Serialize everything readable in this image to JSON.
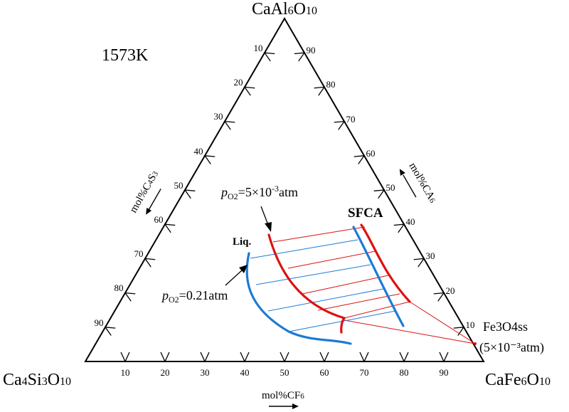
{
  "diagram": {
    "temperature": "1573K",
    "vertices": {
      "top": {
        "main": "CaAl",
        "sub1": "6",
        "mid": "O",
        "sub2": "10"
      },
      "left": {
        "main": "Ca",
        "sub1": "4",
        "mid": "Si",
        "sub2": "3",
        "tail": "O",
        "sub3": "10"
      },
      "right": {
        "main": "CaFe",
        "sub1": "6",
        "mid": "O",
        "sub2": "10"
      }
    },
    "axes": {
      "bottom": {
        "label_main": "mol%CF",
        "label_sub": "6",
        "ticks": [
          "10",
          "20",
          "30",
          "40",
          "50",
          "60",
          "70",
          "80",
          "90"
        ]
      },
      "left": {
        "label_main": "mol%C",
        "label_sub1": "4",
        "label_mid": "S",
        "label_sub2": "3",
        "ticks": [
          "10",
          "20",
          "30",
          "40",
          "50",
          "60",
          "70",
          "80",
          "90"
        ]
      },
      "right": {
        "label_main": "mol%CA",
        "label_sub": "6",
        "ticks": [
          "10",
          "20",
          "30",
          "40",
          "50",
          "60",
          "70",
          "80",
          "90"
        ]
      }
    },
    "labels": {
      "liq": "Liq.",
      "sfca": "SFCA",
      "fe3o4ss_main": "Fe3O4ss",
      "fe3o4ss_pressure": "(5×10⁻³atm)",
      "po2_high": {
        "p": "p",
        "sub": "O2",
        "value": "=5×10",
        "exp": "-3",
        "unit": "atm"
      },
      "po2_low": {
        "p": "p",
        "sub": "O2",
        "value": "=0.21atm"
      }
    },
    "colors": {
      "red": "#dd1111",
      "blue": "#1a7bd6",
      "black": "#000000"
    }
  }
}
